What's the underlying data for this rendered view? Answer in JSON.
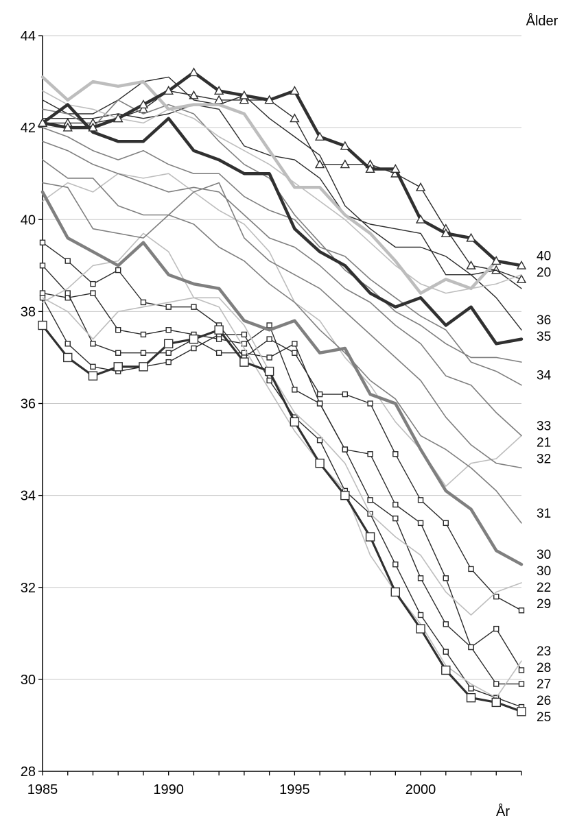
{
  "chart_data": {
    "type": "line",
    "title": "",
    "xlabel": "År",
    "ylabel": "",
    "legend_title": "Ålder",
    "xlim": [
      1985,
      2004
    ],
    "ylim": [
      28,
      44
    ],
    "x_ticks": [
      1985,
      1990,
      1995,
      2000
    ],
    "y_ticks": [
      28,
      30,
      32,
      34,
      36,
      38,
      40,
      42,
      44
    ],
    "grid": "horizontal",
    "x": [
      1985,
      1986,
      1987,
      1988,
      1989,
      1990,
      1991,
      1992,
      1993,
      1994,
      1995,
      1996,
      1997,
      1998,
      1999,
      2000,
      2001,
      2002,
      2003,
      2004
    ],
    "colors": {
      "grid": "#c8c8c8",
      "axis": "#000000",
      "dark": "#303030",
      "mid": "#7f7f7f",
      "light": "#bdbdbd",
      "thin": "#2a2a2a"
    },
    "series": [
      {
        "name": "20",
        "style": "thick-light",
        "values": [
          43.1,
          42.6,
          43.0,
          42.9,
          43.0,
          42.4,
          42.5,
          42.5,
          42.3,
          41.5,
          40.7,
          40.7,
          40.1,
          39.7,
          39.1,
          38.4,
          38.7,
          38.5,
          39.1,
          39.0
        ]
      },
      {
        "name": "21",
        "style": "thin-light",
        "values": [
          40.4,
          40.8,
          40.6,
          41.0,
          40.9,
          41.0,
          40.6,
          40.2,
          39.9,
          39.3,
          38.2,
          37.8,
          37.0,
          36.4,
          35.6,
          35.0,
          34.2,
          34.7,
          34.8,
          35.3
        ]
      },
      {
        "name": "22",
        "style": "thin-light",
        "values": [
          38.2,
          38.5,
          39.0,
          39.1,
          39.7,
          39.3,
          38.3,
          38.3,
          37.7,
          36.7,
          35.8,
          35.3,
          34.7,
          33.6,
          33.1,
          32.7,
          31.9,
          31.4,
          31.9,
          32.1
        ]
      },
      {
        "name": "23",
        "style": "thin-light",
        "values": [
          38.3,
          38.0,
          37.4,
          38.0,
          38.1,
          38.2,
          38.3,
          38.1,
          37.2,
          36.3,
          35.4,
          34.7,
          34.1,
          32.7,
          31.9,
          31.2,
          30.3,
          29.9,
          29.6,
          30.4
        ]
      },
      {
        "name": "25",
        "style": "thick-dark-square",
        "values": [
          37.7,
          37.0,
          36.6,
          36.8,
          36.8,
          37.3,
          37.4,
          37.6,
          36.9,
          36.7,
          35.6,
          34.7,
          34.0,
          33.1,
          31.9,
          31.1,
          30.2,
          29.6,
          29.5,
          29.3
        ]
      },
      {
        "name": "26",
        "style": "thin-square",
        "values": [
          38.3,
          37.3,
          36.8,
          36.7,
          36.8,
          36.9,
          37.2,
          37.5,
          37.5,
          36.5,
          35.7,
          35.2,
          34.1,
          33.6,
          32.5,
          31.4,
          30.6,
          29.8,
          29.6,
          29.4
        ]
      },
      {
        "name": "27",
        "style": "thin-square",
        "values": [
          38.4,
          38.3,
          38.4,
          37.6,
          37.5,
          37.6,
          37.5,
          37.4,
          37.3,
          37.7,
          36.3,
          36.0,
          35.0,
          33.9,
          33.5,
          32.2,
          31.2,
          30.7,
          29.9,
          29.9
        ]
      },
      {
        "name": "28",
        "style": "thin-square",
        "values": [
          39.0,
          38.4,
          37.3,
          37.1,
          37.1,
          37.1,
          37.4,
          37.1,
          37.1,
          37.0,
          37.3,
          36.0,
          35.0,
          34.9,
          33.8,
          33.4,
          32.2,
          30.7,
          31.1,
          30.2
        ]
      },
      {
        "name": "29",
        "style": "thin-square",
        "values": [
          39.5,
          39.1,
          38.6,
          38.9,
          38.2,
          38.1,
          38.1,
          37.7,
          37.0,
          37.4,
          37.1,
          36.2,
          36.2,
          36.0,
          34.9,
          33.9,
          33.4,
          32.4,
          31.8,
          31.5
        ]
      },
      {
        "name": "30",
        "style": "thick-mid",
        "values": [
          40.6,
          39.6,
          39.3,
          39.0,
          39.5,
          38.8,
          38.6,
          38.5,
          37.8,
          37.6,
          37.8,
          37.1,
          37.2,
          36.2,
          36.0,
          35.0,
          34.1,
          33.7,
          32.8,
          32.5
        ]
      },
      {
        "name": "31",
        "style": "thin-mid",
        "values": [
          40.8,
          40.7,
          39.8,
          39.7,
          39.6,
          40.1,
          39.9,
          39.4,
          39.1,
          38.6,
          38.2,
          37.6,
          37.1,
          36.5,
          36.1,
          35.3,
          35.0,
          34.6,
          34.1,
          33.4
        ]
      },
      {
        "name": "32",
        "style": "thin-mid",
        "values": [
          41.3,
          40.9,
          40.9,
          40.3,
          40.1,
          40.1,
          40.6,
          40.8,
          39.6,
          39.1,
          38.8,
          38.5,
          38.0,
          37.5,
          37.0,
          36.5,
          35.7,
          35.1,
          34.7,
          34.6
        ]
      },
      {
        "name": "33",
        "style": "thin-mid",
        "values": [
          41.7,
          41.5,
          41.2,
          41.0,
          40.8,
          40.6,
          40.7,
          40.6,
          40.1,
          39.6,
          39.4,
          39.0,
          38.5,
          38.2,
          37.7,
          37.3,
          36.6,
          36.4,
          35.8,
          35.3
        ]
      },
      {
        "name": "34",
        "style": "thin-mid",
        "values": [
          42.0,
          41.8,
          41.5,
          41.3,
          41.5,
          41.2,
          41.0,
          41.0,
          40.5,
          40.2,
          40.0,
          39.4,
          39.2,
          38.7,
          38.3,
          37.9,
          37.6,
          36.9,
          36.7,
          36.4
        ]
      },
      {
        "name": "35",
        "style": "thick-dark",
        "values": [
          42.1,
          42.5,
          41.9,
          41.7,
          41.7,
          42.2,
          41.5,
          41.3,
          41.0,
          41.0,
          39.8,
          39.3,
          39.0,
          38.4,
          38.1,
          38.3,
          37.7,
          38.1,
          37.3,
          37.4
        ]
      },
      {
        "name": "36",
        "style": "thin-dark",
        "values": [
          42.2,
          42.2,
          42.2,
          42.3,
          42.2,
          42.3,
          42.5,
          42.4,
          41.6,
          41.4,
          41.3,
          40.9,
          40.1,
          39.9,
          39.8,
          39.7,
          38.8,
          38.8,
          38.3,
          37.6
        ]
      },
      {
        "name": "40",
        "style": "thick-dark-triangle",
        "values": [
          42.1,
          42.0,
          42.0,
          42.2,
          42.5,
          42.8,
          43.2,
          42.8,
          42.7,
          42.6,
          42.8,
          41.8,
          41.6,
          41.1,
          41.1,
          40.0,
          39.7,
          39.6,
          39.1,
          39.0
        ]
      },
      {
        "name": "",
        "style": "thin-dark-triangle",
        "values": [
          42.1,
          42.1,
          42.1,
          42.2,
          42.4,
          42.8,
          42.7,
          42.6,
          42.6,
          42.6,
          42.2,
          41.2,
          41.2,
          41.2,
          41.0,
          40.7,
          39.8,
          39.0,
          38.9,
          38.7
        ]
      },
      {
        "name": "",
        "style": "thin-dark",
        "values": [
          42.6,
          42.3,
          42.3,
          42.6,
          43.0,
          43.1,
          42.6,
          42.5,
          42.7,
          42.2,
          41.8,
          41.4,
          40.3,
          39.8,
          39.4,
          39.4,
          39.2,
          38.8,
          38.9,
          38.5
        ]
      },
      {
        "name": "",
        "style": "thin-mid",
        "values": [
          42.4,
          42.3,
          42.0,
          42.6,
          42.3,
          42.5,
          42.3,
          41.7,
          41.2,
          40.9,
          40.1,
          39.5,
          38.9,
          38.5,
          38.0,
          37.7,
          37.3,
          37.0,
          37.0,
          36.9
        ]
      },
      {
        "name": "",
        "style": "thin-light",
        "values": [
          42.8,
          42.5,
          42.4,
          42.2,
          42.1,
          42.4,
          42.2,
          41.8,
          41.5,
          41.2,
          40.8,
          40.4,
          40.0,
          39.5,
          39.0,
          38.6,
          38.4,
          38.5,
          38.6,
          38.8
        ]
      }
    ],
    "end_labels": [
      "40",
      "20",
      "30",
      "36",
      "35",
      "34",
      "33",
      "21",
      "32",
      "31",
      "30",
      "22",
      "29",
      "23",
      "28",
      "27",
      "26",
      "25"
    ]
  }
}
